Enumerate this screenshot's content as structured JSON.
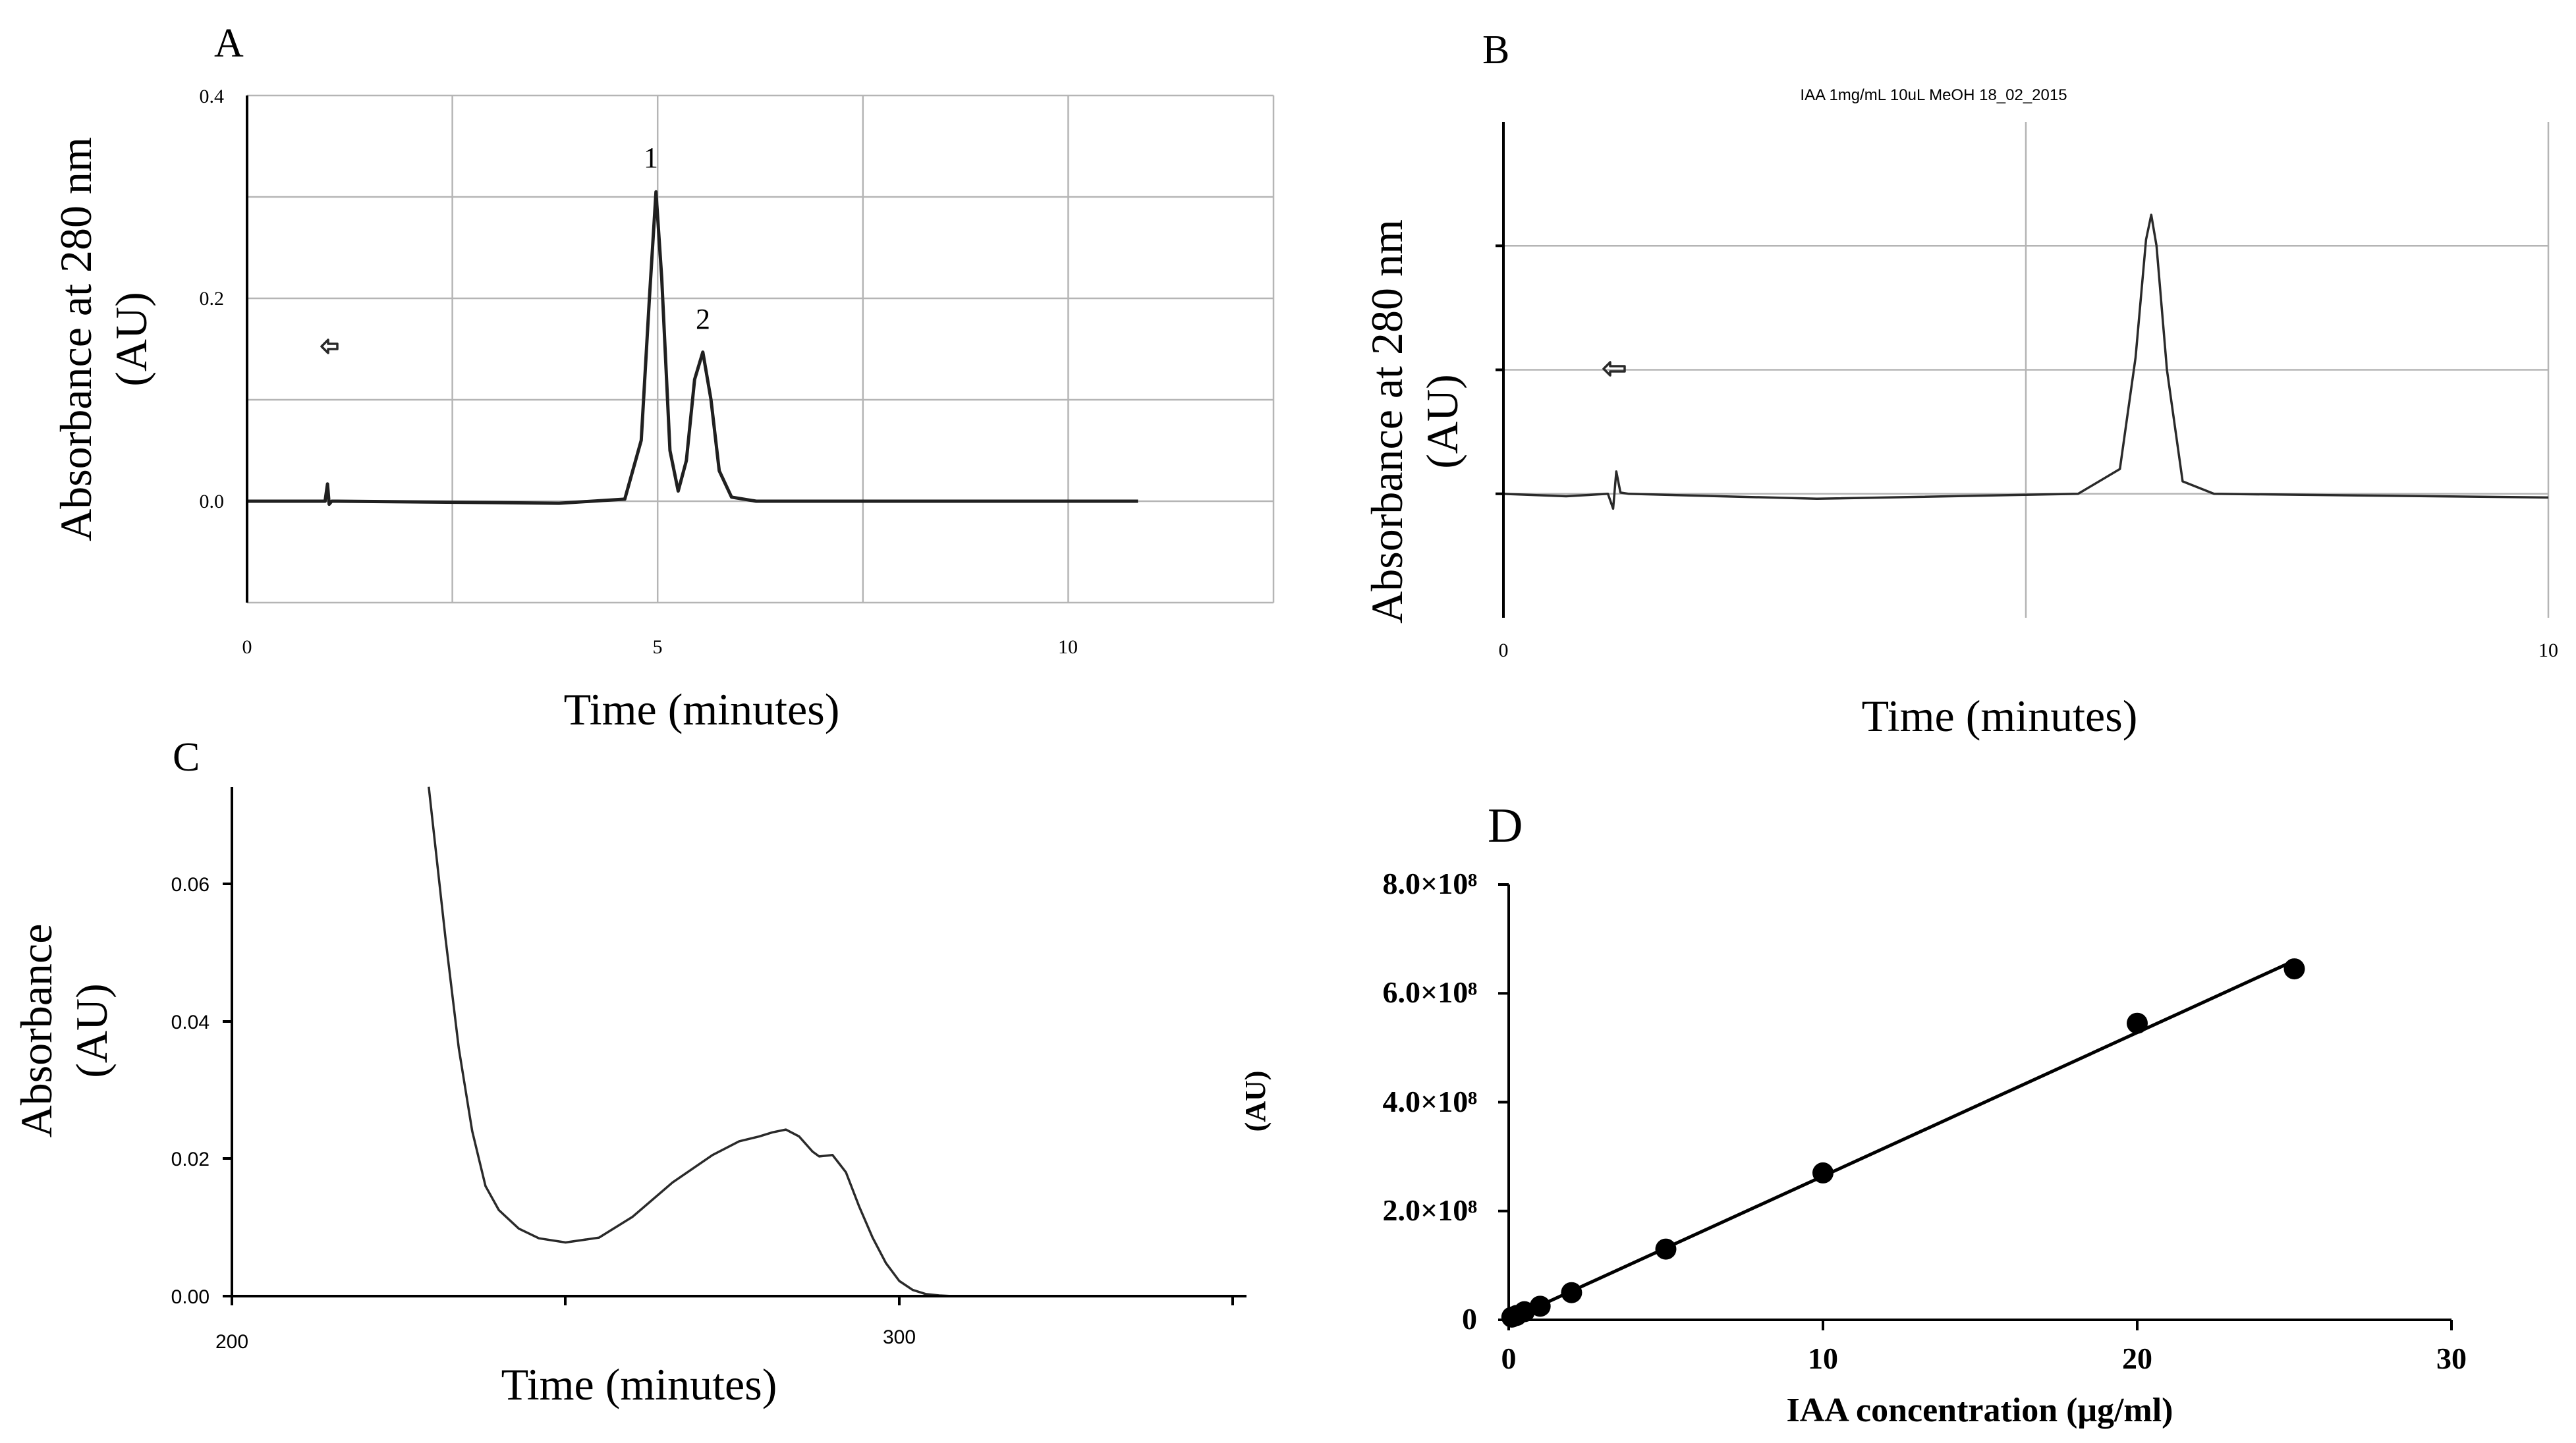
{
  "figure": {
    "panels": [
      "A",
      "B",
      "C",
      "D"
    ]
  },
  "chart_data": [
    {
      "panel": "A",
      "type": "line",
      "title": "",
      "xlabel": "Time (minutes)",
      "ylabel_line1": "Absorbance at 280 nm",
      "ylabel_line2": "(AU)",
      "xlim": [
        0,
        12.5
      ],
      "ylim": [
        -0.1,
        0.4
      ],
      "x_ticks": [
        "0",
        "5",
        "10"
      ],
      "y_ticks": [
        "0.0",
        "0.2",
        "0.4"
      ],
      "grid": true,
      "peaks": [
        {
          "label": "1",
          "x": 4.98,
          "y": 0.305
        },
        {
          "label": "2",
          "x": 5.55,
          "y": 0.147
        }
      ],
      "series": [
        {
          "name": "chromatogram",
          "x": [
            0,
            0.95,
            0.98,
            1.0,
            1.03,
            1.1,
            3.8,
            4.6,
            4.8,
            4.9,
            4.98,
            5.05,
            5.15,
            5.25,
            5.35,
            5.45,
            5.55,
            5.65,
            5.75,
            5.9,
            6.2,
            10.85
          ],
          "values": [
            0.0,
            0.0,
            0.017,
            -0.003,
            0.0,
            0.0,
            -0.002,
            0.002,
            0.06,
            0.2,
            0.305,
            0.22,
            0.05,
            0.01,
            0.04,
            0.12,
            0.147,
            0.1,
            0.03,
            0.004,
            0.0,
            0.0
          ]
        }
      ]
    },
    {
      "panel": "B",
      "type": "line",
      "title": "IAA 1mg/mL 10uL MeOH 18_02_2015",
      "xlabel": "Time (minutes)",
      "ylabel_line1": "Absorbance at 280 nm",
      "ylabel_line2": "(AU)",
      "xlim": [
        0,
        10
      ],
      "ylim": [
        -0.1,
        0.3
      ],
      "x_ticks": [
        "0",
        "10"
      ],
      "grid": true,
      "series": [
        {
          "name": "chromatogram",
          "x": [
            0,
            0.6,
            1.0,
            1.05,
            1.08,
            1.12,
            1.2,
            3.0,
            5.5,
            5.9,
            6.05,
            6.15,
            6.2,
            6.25,
            6.35,
            6.5,
            6.8,
            10
          ],
          "values": [
            0.0,
            -0.002,
            0.0,
            -0.012,
            0.018,
            0.001,
            0.0,
            -0.004,
            0.0,
            0.02,
            0.11,
            0.205,
            0.225,
            0.2,
            0.1,
            0.01,
            0.0,
            -0.003
          ]
        }
      ]
    },
    {
      "panel": "C",
      "type": "line",
      "title": "",
      "xlabel": "Time (minutes)",
      "ylabel_line1": "Absorbance",
      "ylabel_line2": "(AU)",
      "xlim": [
        200,
        352
      ],
      "ylim": [
        0,
        0.075
      ],
      "x_ticks": [
        "200",
        "300"
      ],
      "y_ticks": [
        "0.00",
        "0.02",
        "0.04",
        "0.06"
      ],
      "grid": false,
      "series": [
        {
          "name": "spectrum",
          "x": [
            229.5,
            232,
            234,
            236,
            238,
            240,
            243,
            246,
            250,
            255,
            260,
            266,
            272,
            276,
            279,
            281,
            283,
            285,
            287,
            288,
            290,
            292,
            294,
            296,
            298,
            300,
            302,
            304,
            306,
            308
          ],
          "values": [
            0.074,
            0.052,
            0.036,
            0.024,
            0.016,
            0.0125,
            0.0098,
            0.0084,
            0.0078,
            0.0085,
            0.0115,
            0.0165,
            0.0205,
            0.0225,
            0.0232,
            0.0238,
            0.0242,
            0.0232,
            0.021,
            0.0203,
            0.0205,
            0.018,
            0.013,
            0.0085,
            0.0048,
            0.0022,
            0.0009,
            0.0003,
            0.0001,
            0.0
          ]
        }
      ]
    },
    {
      "panel": "D",
      "type": "scatter",
      "title": "",
      "xlabel": "IAA concentration (μg/ml)",
      "ylabel": "(AU)",
      "xlim": [
        0,
        30
      ],
      "ylim": [
        0,
        800000000
      ],
      "x_ticks": [
        "0",
        "10",
        "20",
        "30"
      ],
      "y_ticks": [
        "0",
        "2.0×10⁸",
        "4.0×10⁸",
        "6.0×10⁸",
        "8.0×10⁸"
      ],
      "grid": false,
      "x": [
        0.1,
        0.25,
        0.5,
        1,
        2,
        5,
        10,
        20,
        25
      ],
      "values": [
        5000000,
        8000000,
        15000000,
        25000000,
        50000000,
        130000000,
        270000000,
        545000000,
        645000000
      ],
      "fit_line": {
        "x": [
          0,
          25
        ],
        "values": [
          0,
          660000000
        ]
      }
    }
  ]
}
